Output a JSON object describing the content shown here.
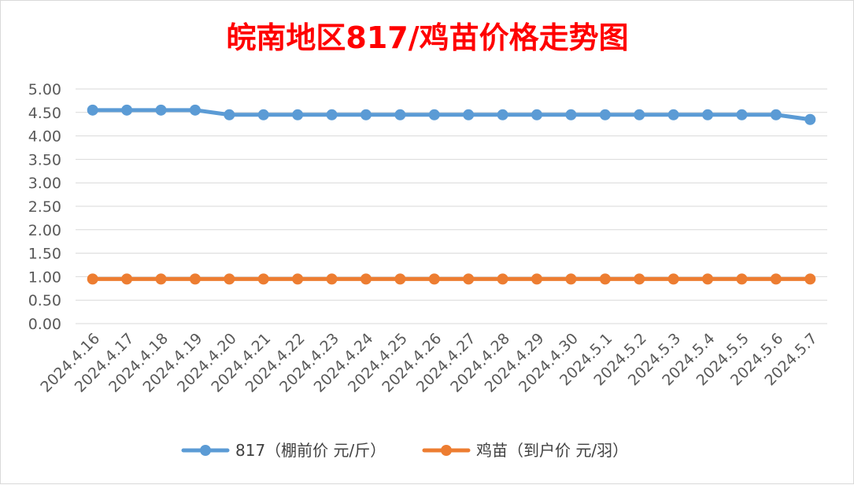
{
  "chart_data": {
    "type": "line",
    "title": "皖南地区817/鸡苗价格走势图",
    "xlabel": "",
    "ylabel": "",
    "ylim": [
      0,
      5
    ],
    "ytick_step": 0.5,
    "y_tick_labels": [
      "0.00",
      "0.50",
      "1.00",
      "1.50",
      "2.00",
      "2.50",
      "3.00",
      "3.50",
      "4.00",
      "4.50",
      "5.00"
    ],
    "grid": true,
    "legend_position": "bottom",
    "categories": [
      "2024.4.16",
      "2024.4.17",
      "2024.4.18",
      "2024.4.19",
      "2024.4.20",
      "2024.4.21",
      "2024.4.22",
      "2024.4.23",
      "2024.4.24",
      "2024.4.25",
      "2024.4.26",
      "2024.4.27",
      "2024.4.28",
      "2024.4.29",
      "2024.4.30",
      "2024.5.1",
      "2024.5.2",
      "2024.5.3",
      "2024.5.4",
      "2024.5.5",
      "2024.5.6",
      "2024.5.7"
    ],
    "series": [
      {
        "name": "817（棚前价 元/斤）",
        "color": "#5b9bd5",
        "values": [
          4.55,
          4.55,
          4.55,
          4.55,
          4.45,
          4.45,
          4.45,
          4.45,
          4.45,
          4.45,
          4.45,
          4.45,
          4.45,
          4.45,
          4.45,
          4.45,
          4.45,
          4.45,
          4.45,
          4.45,
          4.45,
          4.35
        ]
      },
      {
        "name": "鸡苗（到户价 元/羽）",
        "color": "#ed7d31",
        "values": [
          0.95,
          0.95,
          0.95,
          0.95,
          0.95,
          0.95,
          0.95,
          0.95,
          0.95,
          0.95,
          0.95,
          0.95,
          0.95,
          0.95,
          0.95,
          0.95,
          0.95,
          0.95,
          0.95,
          0.95,
          0.95,
          0.95
        ]
      }
    ],
    "gridline_color": "#d9d9d9"
  }
}
